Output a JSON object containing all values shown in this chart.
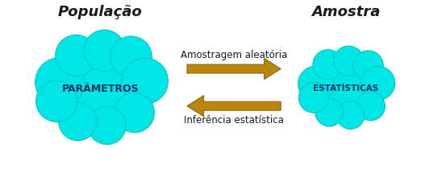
{
  "bg_color": "#ffffff",
  "cloud_color": "#00e5e5",
  "cloud_edge_color": "#00c8c8",
  "shadow_color": "#909090",
  "arrow_color": "#b8860b",
  "arrow_edge_color": "#8b6914",
  "title_left": "População",
  "title_right": "Amostra",
  "label_left": "PARÂMETROS",
  "label_right": "ESTATÍSTICAS",
  "arrow_top_label": "Amostragem aleatória",
  "arrow_bottom_label": "Inferência estatística",
  "figsize": [
    5.53,
    2.2
  ],
  "dpi": 100
}
